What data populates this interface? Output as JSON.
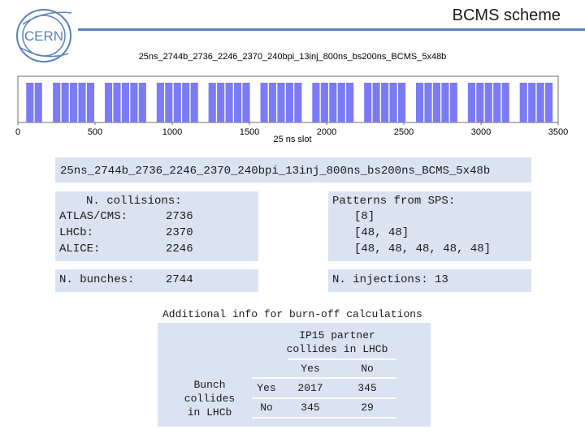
{
  "header": {
    "title": "BCMS scheme",
    "logo_text": "CERN"
  },
  "chart_data": {
    "type": "bar",
    "title": "25ns_2744b_2736_2246_2370_240bpi_13inj_800ns_bs200ns_BCMS_5x48b",
    "xlabel": "25 ns slot",
    "ylabel": "",
    "xlim": [
      0,
      3500
    ],
    "x_ticks": [
      "0",
      "500",
      "1000",
      "1500",
      "2000",
      "2500",
      "3000",
      "3500"
    ],
    "bar_color": "#7b7bf5",
    "trains": [
      {
        "start": 54,
        "end": 101
      },
      {
        "start": 109,
        "end": 156
      },
      {
        "start": 227,
        "end": 274
      },
      {
        "start": 282,
        "end": 329
      },
      {
        "start": 337,
        "end": 384
      },
      {
        "start": 392,
        "end": 439
      },
      {
        "start": 447,
        "end": 494
      },
      {
        "start": 563,
        "end": 610
      },
      {
        "start": 618,
        "end": 665
      },
      {
        "start": 673,
        "end": 720
      },
      {
        "start": 728,
        "end": 775
      },
      {
        "start": 783,
        "end": 830
      },
      {
        "start": 899,
        "end": 946
      },
      {
        "start": 954,
        "end": 1001
      },
      {
        "start": 1009,
        "end": 1056
      },
      {
        "start": 1064,
        "end": 1111
      },
      {
        "start": 1119,
        "end": 1166
      },
      {
        "start": 1235,
        "end": 1282
      },
      {
        "start": 1290,
        "end": 1337
      },
      {
        "start": 1345,
        "end": 1392
      },
      {
        "start": 1400,
        "end": 1447
      },
      {
        "start": 1455,
        "end": 1502
      },
      {
        "start": 1571,
        "end": 1618
      },
      {
        "start": 1626,
        "end": 1673
      },
      {
        "start": 1681,
        "end": 1728
      },
      {
        "start": 1736,
        "end": 1783
      },
      {
        "start": 1791,
        "end": 1838
      },
      {
        "start": 1907,
        "end": 1954
      },
      {
        "start": 1962,
        "end": 2009
      },
      {
        "start": 2017,
        "end": 2064
      },
      {
        "start": 2072,
        "end": 2119
      },
      {
        "start": 2127,
        "end": 2174
      },
      {
        "start": 2243,
        "end": 2290
      },
      {
        "start": 2298,
        "end": 2345
      },
      {
        "start": 2353,
        "end": 2400
      },
      {
        "start": 2408,
        "end": 2455
      },
      {
        "start": 2463,
        "end": 2510
      },
      {
        "start": 2579,
        "end": 2626
      },
      {
        "start": 2634,
        "end": 2681
      },
      {
        "start": 2689,
        "end": 2736
      },
      {
        "start": 2744,
        "end": 2791
      },
      {
        "start": 2799,
        "end": 2846
      },
      {
        "start": 2915,
        "end": 2962
      },
      {
        "start": 2970,
        "end": 3017
      },
      {
        "start": 3025,
        "end": 3072
      },
      {
        "start": 3080,
        "end": 3127
      },
      {
        "start": 3135,
        "end": 3182
      },
      {
        "start": 3251,
        "end": 3298
      },
      {
        "start": 3306,
        "end": 3353
      },
      {
        "start": 3361,
        "end": 3408
      },
      {
        "start": 3416,
        "end": 3463
      }
    ]
  },
  "scheme_name": "25ns_2744b_2736_2246_2370_240bpi_13inj_800ns_bs200ns_BCMS_5x48b",
  "collisions": {
    "title": "N. collisions:",
    "rows": [
      {
        "label": "ATLAS/CMS:",
        "value": "2736"
      },
      {
        "label": "LHCb:",
        "value": "2370"
      },
      {
        "label": "ALICE:",
        "value": "2246"
      }
    ]
  },
  "patterns": {
    "title": "Patterns from SPS:",
    "items": [
      "[8]",
      "[48, 48]",
      "[48, 48, 48, 48, 48]"
    ]
  },
  "bunches": {
    "label": "N. bunches:",
    "value": "2744"
  },
  "injections": {
    "text": "N. injections: 13"
  },
  "burnoff": {
    "title": "Additional info for burn-off calculations",
    "col_header_line1": "IP15 partner",
    "col_header_line2": "collides in LHCb",
    "row_header_line1": "Bunch",
    "row_header_line2": "collides",
    "row_header_line3": "in LHCb",
    "col_labels": [
      "Yes",
      "No"
    ],
    "rows": [
      {
        "label": "Yes",
        "values": [
          "2017",
          "345"
        ]
      },
      {
        "label": "No",
        "values": [
          "345",
          "29"
        ]
      }
    ]
  }
}
